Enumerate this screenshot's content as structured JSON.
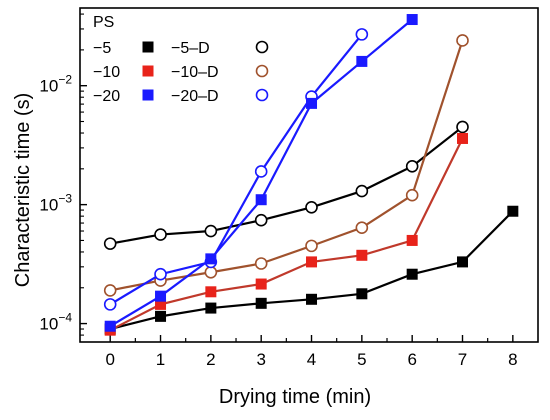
{
  "chart_data": {
    "type": "line",
    "title": "",
    "xlabel": "Drying time (min)",
    "ylabel": "Characteristic time (s)",
    "xlim": [
      -0.6,
      8.5
    ],
    "ylim": [
      7e-05,
      0.045
    ],
    "yscale": "log",
    "xticks": [
      0,
      1,
      2,
      3,
      4,
      5,
      6,
      7,
      8
    ],
    "xtick_labels": [
      "0",
      "1",
      "2",
      "3",
      "4",
      "5",
      "6",
      "7",
      "8"
    ],
    "yticks": [
      0.0001,
      0.001,
      0.01
    ],
    "legend_title": "PS",
    "legend_position": "top-left",
    "grid": false,
    "series": [
      {
        "name": "−5",
        "marker": "square-filled",
        "color": "#000000",
        "line_color": "#000000",
        "x": [
          0,
          1,
          2,
          3,
          4,
          5,
          6,
          7,
          8
        ],
        "y": [
          9e-05,
          0.000115,
          0.000135,
          0.000148,
          0.00016,
          0.000178,
          0.00026,
          0.00033,
          0.00088
        ]
      },
      {
        "name": "−10",
        "marker": "square-filled",
        "color": "#e8231a",
        "line_color": "#c0392b",
        "x": [
          0,
          1,
          2,
          3,
          4,
          5,
          6,
          7
        ],
        "y": [
          8.8e-05,
          0.000145,
          0.000185,
          0.000215,
          0.00033,
          0.000375,
          0.0005,
          0.0036
        ]
      },
      {
        "name": "−20",
        "marker": "square-filled",
        "color": "#1a1aff",
        "line_color": "#1a1aff",
        "x": [
          0,
          1,
          2,
          3,
          4,
          5,
          6
        ],
        "y": [
          9.5e-05,
          0.00017,
          0.00035,
          0.0011,
          0.0071,
          0.016,
          0.036
        ]
      },
      {
        "name": "−5–D",
        "marker": "circle-open",
        "color": "#000000",
        "line_color": "#000000",
        "x": [
          0,
          1,
          2,
          3,
          4,
          5,
          6,
          7
        ],
        "y": [
          0.00047,
          0.00056,
          0.0006,
          0.00074,
          0.00095,
          0.0013,
          0.0021,
          0.0045
        ]
      },
      {
        "name": "−10–D",
        "marker": "circle-open",
        "color": "#a0522d",
        "line_color": "#a0522d",
        "x": [
          0,
          1,
          2,
          3,
          4,
          5,
          6,
          7
        ],
        "y": [
          0.00019,
          0.00023,
          0.00027,
          0.00032,
          0.00045,
          0.00064,
          0.0012,
          0.024
        ]
      },
      {
        "name": "−20–D",
        "marker": "circle-open",
        "color": "#1a1aff",
        "line_color": "#1a1aff",
        "x": [
          0,
          1,
          2,
          3,
          4,
          5
        ],
        "y": [
          0.000145,
          0.00026,
          0.00033,
          0.0019,
          0.0081,
          0.027
        ]
      }
    ]
  }
}
